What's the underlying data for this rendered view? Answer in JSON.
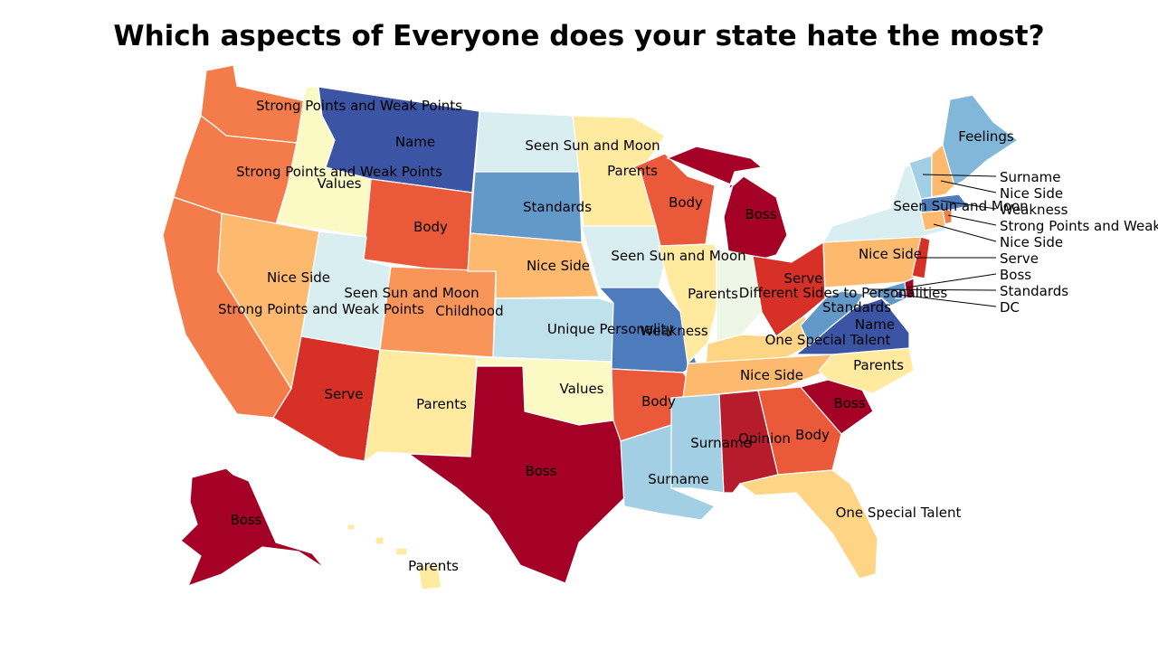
{
  "title": "Which aspects of Everyone does your state hate the most?",
  "palette": {
    "Boss": "#a50026",
    "Opinion": "#b71c2c",
    "Serve": "#d73027",
    "Body": "#ea5a3a",
    "Strong Points and Weak Points": "#f47c4a",
    "Childhood": "#f99558",
    "Nice Side": "#fdb96e",
    "One Special Talent": "#fed585",
    "Parents": "#ffeaa0",
    "Values": "#fbf9c4",
    "Different Sides to Personalities": "#eef7e6",
    "Seen Sun and Moon": "#d8eef0",
    "Unique Personality": "#bfe1ec",
    "Surname": "#a2cfe4",
    "Feelings": "#81b8da",
    "Standards": "#6399c9",
    "Weakness": "#4d7bbb",
    "Name": "#3b55a4",
    "DC": "#3b55a4"
  },
  "states": [
    {
      "code": "WA",
      "label": "Strong Points and Weak Points"
    },
    {
      "code": "OR",
      "label": "Strong Points and Weak Points"
    },
    {
      "code": "CA",
      "label": "Strong Points and Weak Points"
    },
    {
      "code": "ID",
      "label": "Values"
    },
    {
      "code": "NV",
      "label": "Nice Side"
    },
    {
      "code": "MT",
      "label": "Name"
    },
    {
      "code": "WY",
      "label": "Body"
    },
    {
      "code": "UT",
      "label": "Seen Sun and Moon"
    },
    {
      "code": "AZ",
      "label": "Serve"
    },
    {
      "code": "CO",
      "label": "Childhood"
    },
    {
      "code": "NM",
      "label": "Parents"
    },
    {
      "code": "ND",
      "label": "Seen Sun and Moon"
    },
    {
      "code": "SD",
      "label": "Standards"
    },
    {
      "code": "NE",
      "label": "Nice Side"
    },
    {
      "code": "KS",
      "label": "Unique Personality"
    },
    {
      "code": "OK",
      "label": "Values"
    },
    {
      "code": "TX",
      "label": "Boss"
    },
    {
      "code": "MN",
      "label": "Parents"
    },
    {
      "code": "IA",
      "label": "Seen Sun and Moon"
    },
    {
      "code": "MO",
      "label": "Weakness"
    },
    {
      "code": "AR",
      "label": "Body"
    },
    {
      "code": "LA",
      "label": "Surname"
    },
    {
      "code": "WI",
      "label": "Body"
    },
    {
      "code": "IL",
      "label": "Parents"
    },
    {
      "code": "MI",
      "label": "Boss"
    },
    {
      "code": "IN",
      "label": "Different Sides to Personalities"
    },
    {
      "code": "OH",
      "label": "Serve"
    },
    {
      "code": "KY",
      "label": "One Special Talent"
    },
    {
      "code": "TN",
      "label": "Nice Side"
    },
    {
      "code": "MS",
      "label": "Surname"
    },
    {
      "code": "AL",
      "label": "Opinion"
    },
    {
      "code": "GA",
      "label": "Body"
    },
    {
      "code": "FL",
      "label": "One Special Talent"
    },
    {
      "code": "SC",
      "label": "Boss"
    },
    {
      "code": "NC",
      "label": "Parents"
    },
    {
      "code": "VA",
      "label": "Name"
    },
    {
      "code": "WV",
      "label": "Standards"
    },
    {
      "code": "PA",
      "label": "Nice Side"
    },
    {
      "code": "NY",
      "label": "Seen Sun and Moon"
    },
    {
      "code": "NJ",
      "label": "Serve"
    },
    {
      "code": "DE",
      "label": "Boss"
    },
    {
      "code": "MD",
      "label": "Standards"
    },
    {
      "code": "DC",
      "label": "DC"
    },
    {
      "code": "CT",
      "label": "Nice Side"
    },
    {
      "code": "RI",
      "label": "Strong Points and Weak Points"
    },
    {
      "code": "MA",
      "label": "Weakness"
    },
    {
      "code": "VT",
      "label": "Surname"
    },
    {
      "code": "NH",
      "label": "Nice Side"
    },
    {
      "code": "ME",
      "label": "Feelings"
    },
    {
      "code": "AK",
      "label": "Boss"
    },
    {
      "code": "HI",
      "label": "Parents"
    }
  ],
  "callouts": [
    "Surname",
    "Nice Side",
    "Weakness",
    "Strong Points and Weak Points",
    "Nice Side",
    "Serve",
    "Boss",
    "Standards",
    "DC"
  ]
}
